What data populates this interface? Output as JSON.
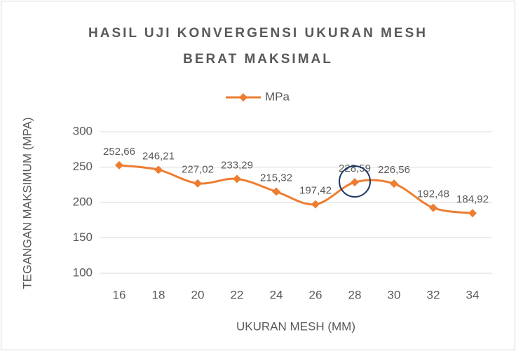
{
  "chart_data": {
    "type": "line",
    "title": [
      "HASIL UJI KONVERGENSI UKURAN MESH",
      "BERAT MAKSIMAL"
    ],
    "x_label": "UKURAN MESH (MM)",
    "y_label": "TEGANGAN MAKSIMUM (MPA)",
    "categories": [
      "16",
      "18",
      "20",
      "22",
      "24",
      "26",
      "28",
      "30",
      "32",
      "34"
    ],
    "series": [
      {
        "name": "MPa",
        "color": "#ed7d31",
        "values": [
          252.66,
          246.21,
          227.02,
          233.29,
          215.32,
          197.42,
          228.59,
          226.56,
          192.48,
          184.92
        ],
        "value_labels": [
          "252,66",
          "246,21",
          "227,02",
          "233,29",
          "215,32",
          "197,42",
          "228,59",
          "226,56",
          "192,48",
          "184,92"
        ]
      }
    ],
    "ylim": [
      100,
      300
    ],
    "yticks": [
      100,
      150,
      200,
      250,
      300
    ],
    "grid": true,
    "smooth": true,
    "legend": "top"
  }
}
